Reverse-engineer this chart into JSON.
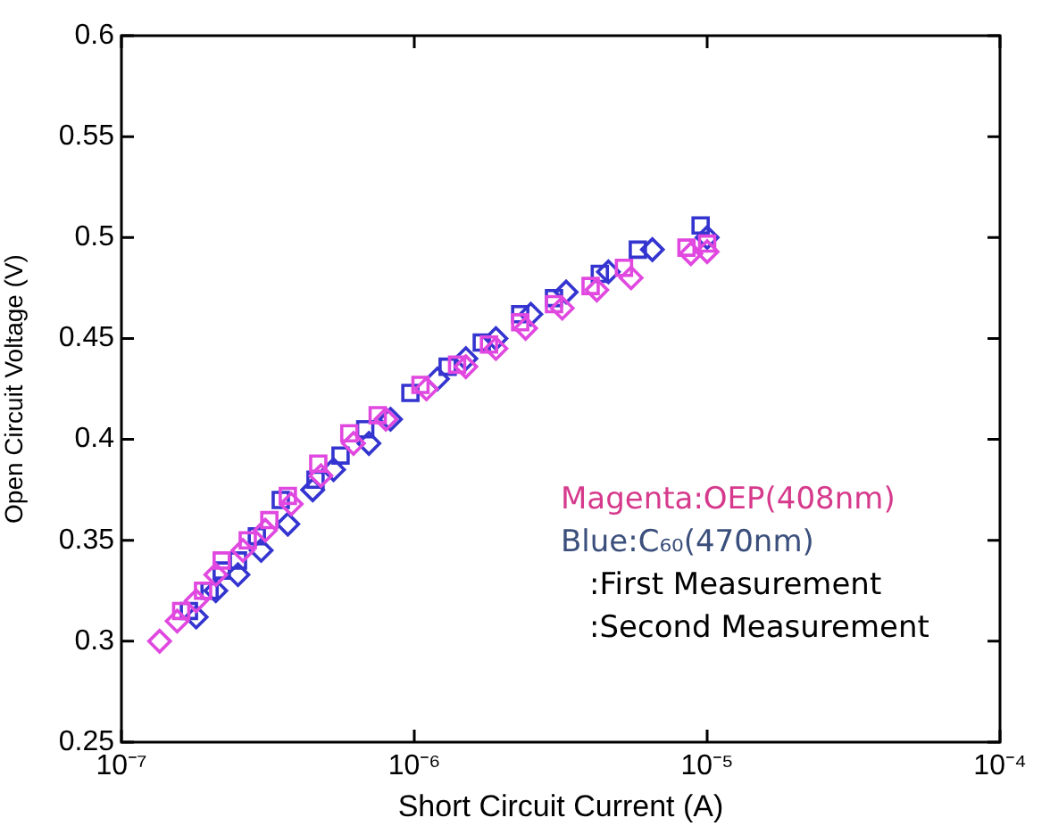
{
  "chart_data": {
    "type": "scatter",
    "xlabel": "Short Circuit Current (A)",
    "ylabel": "Open Circuit Voltage (V)",
    "log": "x",
    "xlim": [
      1e-07,
      0.0001
    ],
    "xticks": [
      {
        "value": 1e-07,
        "label": "10⁻⁷"
      },
      {
        "value": 1e-06,
        "label": "10⁻⁶"
      },
      {
        "value": 1e-05,
        "label": "10⁻⁵"
      },
      {
        "value": 0.0001,
        "label": "10⁻⁴"
      }
    ],
    "ylim": [
      0.25,
      0.6
    ],
    "yticks": [
      0.25,
      0.3,
      0.35,
      0.4,
      0.45,
      0.5,
      0.55,
      0.6
    ],
    "annotations": [
      "Magenta:OEP(408nm)",
      "Blue:C₆₀(470nm)",
      ":First Measurement",
      ":Second Measurement"
    ],
    "series": [
      {
        "color": "#e048e0",
        "marker": "square",
        "x": [
          1.6e-07,
          1.9e-07,
          2.2e-07,
          2.7e-07,
          3.2e-07,
          3.7e-07,
          4.7e-07,
          6e-07,
          7.5e-07,
          1.05e-06,
          1.4e-06,
          1.8e-06,
          2.3e-06,
          3e-06,
          4e-06,
          5.2e-06,
          8.5e-06,
          1e-05
        ],
        "values": [
          0.315,
          0.325,
          0.34,
          0.35,
          0.36,
          0.372,
          0.388,
          0.403,
          0.412,
          0.427,
          0.437,
          0.447,
          0.458,
          0.467,
          0.476,
          0.485,
          0.495,
          0.497
        ]
      },
      {
        "color": "#e048e0",
        "marker": "diamond",
        "x": [
          1.35e-07,
          1.55e-07,
          1.8e-07,
          2.1e-07,
          2.6e-07,
          3.1e-07,
          3.8e-07,
          4.8e-07,
          6.2e-07,
          8e-07,
          1.1e-06,
          1.5e-06,
          1.9e-06,
          2.4e-06,
          3.2e-06,
          4.2e-06,
          5.5e-06,
          8.8e-06,
          1e-05
        ],
        "values": [
          0.3,
          0.31,
          0.32,
          0.333,
          0.345,
          0.355,
          0.368,
          0.382,
          0.398,
          0.41,
          0.425,
          0.436,
          0.445,
          0.455,
          0.465,
          0.474,
          0.48,
          0.492,
          0.493
        ]
      },
      {
        "color": "#3434d0",
        "marker": "square",
        "x": [
          1.7e-07,
          2e-07,
          2.2e-07,
          2.5e-07,
          2.9e-07,
          3.5e-07,
          4.6e-07,
          5.6e-07,
          6.8e-07,
          9.7e-07,
          1.3e-06,
          1.7e-06,
          2.3e-06,
          3e-06,
          4.3e-06,
          5.8e-06,
          9.5e-06
        ],
        "values": [
          0.315,
          0.325,
          0.335,
          0.34,
          0.352,
          0.37,
          0.38,
          0.392,
          0.405,
          0.423,
          0.436,
          0.448,
          0.462,
          0.47,
          0.482,
          0.494,
          0.506
        ]
      },
      {
        "color": "#3434d0",
        "marker": "diamond",
        "x": [
          1.8e-07,
          2.1e-07,
          2.5e-07,
          3e-07,
          3.7e-07,
          4.5e-07,
          5.3e-07,
          7e-07,
          8.3e-07,
          1.2e-06,
          1.5e-06,
          1.9e-06,
          2.5e-06,
          3.3e-06,
          4.6e-06,
          6.5e-06,
          1e-05
        ],
        "values": [
          0.312,
          0.325,
          0.333,
          0.345,
          0.358,
          0.375,
          0.385,
          0.398,
          0.41,
          0.43,
          0.44,
          0.45,
          0.462,
          0.473,
          0.483,
          0.494,
          0.5
        ]
      }
    ]
  }
}
